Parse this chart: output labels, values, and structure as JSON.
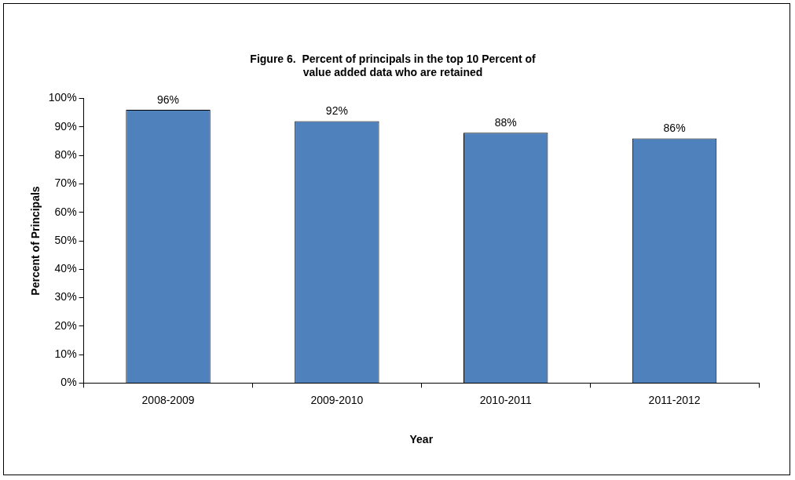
{
  "chart_data": {
    "type": "bar",
    "title": [
      "Figure 6.  Percent of principals in the top 10 Percent of",
      "value added data who are retained"
    ],
    "xlabel": "Year",
    "ylabel": "Percent of Principals",
    "categories": [
      "2008-2009",
      "2009-2010",
      "2010-2011",
      "2011-2012"
    ],
    "values": [
      96,
      92,
      88,
      86
    ],
    "value_labels": [
      "96%",
      "92%",
      "88%",
      "86%"
    ],
    "color": "#4f81bd",
    "ylim": [
      0,
      100
    ],
    "yticks": [
      {
        "value": 0,
        "label": "0%"
      },
      {
        "value": 10,
        "label": "10%"
      },
      {
        "value": 20,
        "label": "20%"
      },
      {
        "value": 30,
        "label": "30%"
      },
      {
        "value": 40,
        "label": "40%"
      },
      {
        "value": 50,
        "label": "50%"
      },
      {
        "value": 60,
        "label": "60%"
      },
      {
        "value": 70,
        "label": "70%"
      },
      {
        "value": 80,
        "label": "80%"
      },
      {
        "value": 90,
        "label": "90%"
      },
      {
        "value": 100,
        "label": "100%"
      }
    ],
    "grid": false,
    "legend": false
  }
}
